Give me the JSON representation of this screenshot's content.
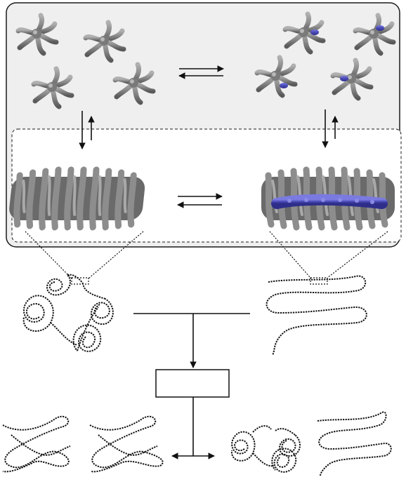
{
  "diagram": {
    "description_text": "",
    "empty_box_label": "",
    "colors": {
      "panel_fill": "#efefef",
      "panel_stroke": "#1a1a1a",
      "molecule_gray": "#8c8c8c",
      "molecule_dark": "#5e5e5e",
      "accent_blue": "#4a4ab8",
      "line": "#111111",
      "background": "#ffffff"
    },
    "icons": [
      "star-molecule-icon",
      "star-molecule-blue-icon",
      "helical-stack-icon",
      "helical-stack-blue-icon",
      "coiled-fiber-icon",
      "serpentine-fiber-icon",
      "equilibrium-arrows-icon"
    ]
  }
}
